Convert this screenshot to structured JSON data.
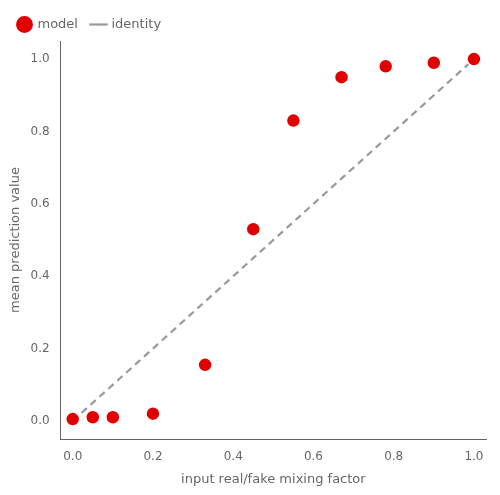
{
  "chart_data": {
    "type": "scatter",
    "xlabel": "input real/fake mixing factor",
    "ylabel": "mean prediction value",
    "series": [
      {
        "name": "identity",
        "type": "line",
        "line_style": "dashed",
        "color": "#999999",
        "x": [
          0,
          1
        ],
        "y": [
          0,
          1
        ]
      },
      {
        "name": "model",
        "type": "scatter",
        "marker": "circle",
        "color": "#e00000",
        "x": [
          0.0,
          0.05,
          0.1,
          0.2,
          0.33,
          0.45,
          0.55,
          0.67,
          0.78,
          0.9,
          1.0
        ],
        "y": [
          0.005,
          0.01,
          0.01,
          0.02,
          0.155,
          0.53,
          0.83,
          0.95,
          0.98,
          0.99,
          1.0
        ],
        "yerr": [
          0.005,
          0.005,
          0.005,
          0.006,
          0.006,
          0.006,
          0.006,
          0.005,
          0.004,
          0.003,
          0.002
        ]
      }
    ],
    "xlim": [
      -0.03,
      1.03
    ],
    "ylim": [
      -0.05,
      1.05
    ],
    "xticks": [
      {
        "value": 0.0,
        "label": "0.0"
      },
      0.2,
      0.4,
      0.6,
      0.8,
      {
        "value": 1.0,
        "label": "1.0"
      }
    ],
    "yticks": [
      {
        "value": 0.0,
        "label": "0.0"
      },
      0.2,
      0.4,
      0.6,
      0.8,
      {
        "value": 1.0,
        "label": "1.0"
      }
    ],
    "grid": false,
    "legend": "upper left"
  }
}
